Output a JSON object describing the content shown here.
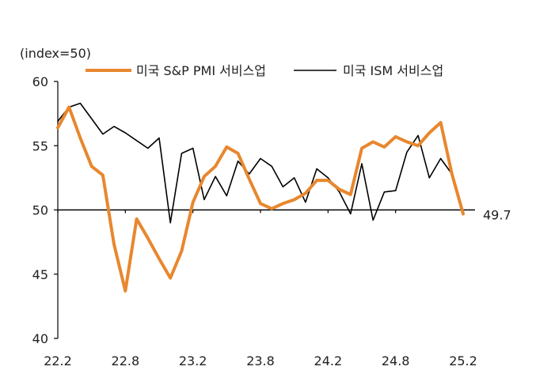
{
  "chart_data": {
    "type": "line",
    "title": "",
    "unit_label": "(index=50)",
    "xlabel": "",
    "ylabel": "",
    "ylim": [
      40,
      60
    ],
    "yticks": [
      40,
      45,
      50,
      55,
      60
    ],
    "x_tick_labels": [
      "22.2",
      "22.8",
      "23.2",
      "23.8",
      "24.2",
      "24.8",
      "25.2"
    ],
    "x_tick_index": [
      0,
      6,
      12,
      18,
      24,
      30,
      36
    ],
    "reference_line": 50,
    "annotation": "49.7",
    "legend_position": "top",
    "grid": false,
    "series": [
      {
        "name": "미국 S&P PMI 서비스업",
        "color": "#E8872E",
        "values": [
          56.4,
          58.0,
          55.6,
          53.4,
          52.7,
          47.3,
          43.7,
          49.3,
          47.8,
          46.2,
          44.7,
          46.8,
          50.6,
          52.6,
          53.4,
          54.9,
          54.4,
          52.4,
          50.5,
          50.1,
          50.5,
          50.8,
          51.3,
          52.3,
          52.3,
          51.6,
          51.2,
          54.8,
          55.3,
          54.9,
          55.7,
          55.3,
          55.0,
          56.0,
          56.8,
          52.8,
          49.7
        ]
      },
      {
        "name": "미국 ISM 서비스업",
        "color": "#000000",
        "values": [
          56.9,
          58.0,
          58.3,
          57.1,
          55.9,
          56.5,
          56.0,
          55.4,
          54.8,
          55.6,
          49.0,
          54.4,
          54.8,
          50.8,
          52.6,
          51.1,
          53.8,
          52.8,
          54.0,
          53.4,
          51.8,
          52.5,
          50.6,
          53.2,
          52.5,
          51.4,
          49.7,
          53.6,
          49.2,
          51.4,
          51.5,
          54.5,
          55.8,
          52.5,
          54.0,
          52.8
        ]
      }
    ]
  }
}
